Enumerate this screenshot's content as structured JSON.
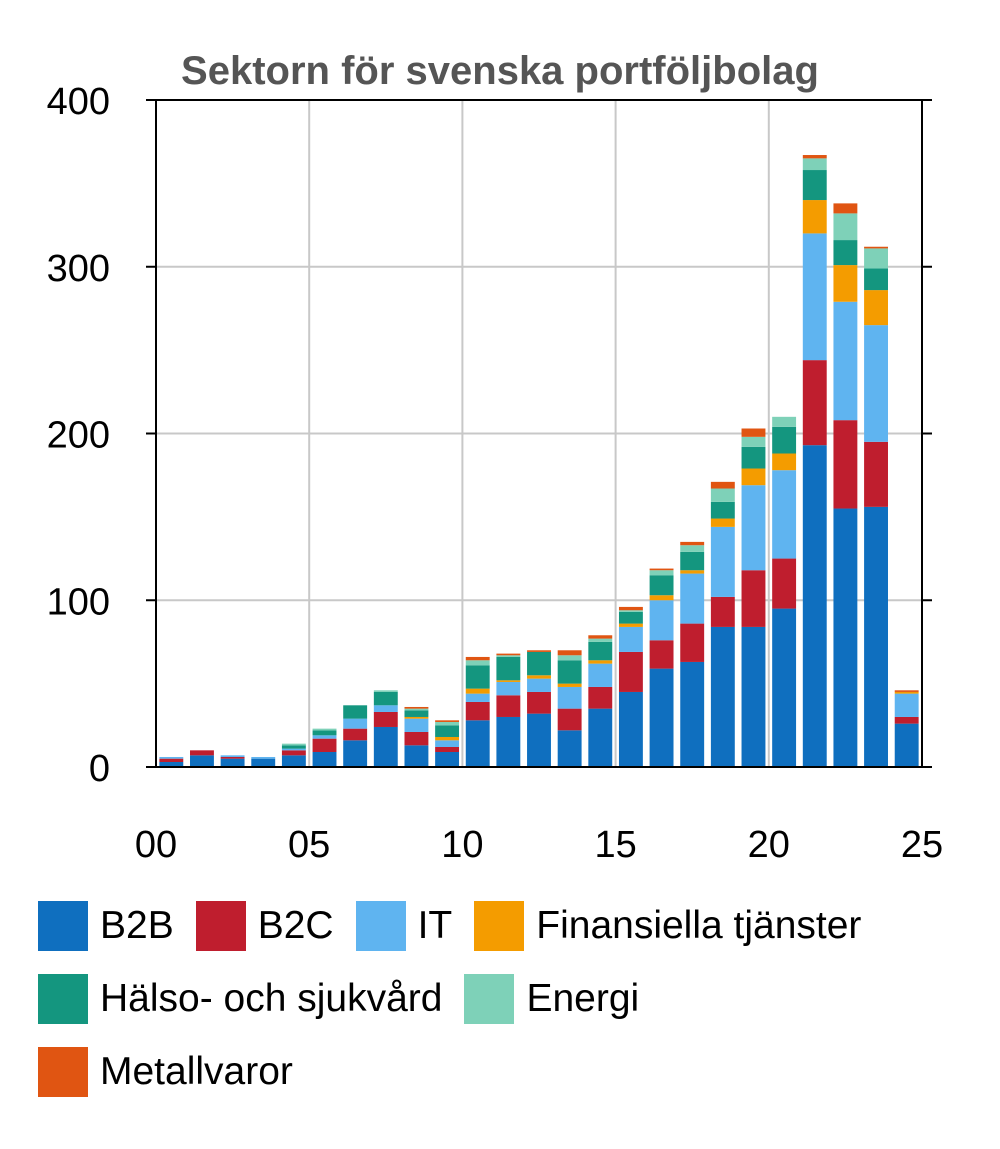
{
  "chart_data": {
    "type": "stacked_bar",
    "title": "Sektorn för svenska portföljbolag",
    "xlabel": "",
    "ylabel": "",
    "ylim": [
      0,
      400
    ],
    "xlim": [
      0,
      25
    ],
    "y_ticks": [
      "0",
      "100",
      "200",
      "300",
      "400"
    ],
    "x_ticks": [
      "00",
      "05",
      "10",
      "15",
      "20",
      "25"
    ],
    "x_tick_values": [
      0,
      5,
      10,
      15,
      20,
      25
    ],
    "grid": true,
    "legend_position": "bottom",
    "categories": [
      2000,
      2001,
      2002,
      2003,
      2004,
      2005,
      2006,
      2007,
      2008,
      2009,
      2010,
      2011,
      2012,
      2013,
      2014,
      2015,
      2016,
      2017,
      2018,
      2019,
      2020,
      2021,
      2022,
      2023,
      2024
    ],
    "series": [
      {
        "name": "B2B",
        "color": "#0f6fbf",
        "values": [
          3,
          7,
          5,
          5,
          7,
          9,
          16,
          24,
          13,
          9,
          28,
          30,
          32,
          22,
          35,
          45,
          59,
          63,
          84,
          84,
          95,
          193,
          155,
          156,
          26
        ]
      },
      {
        "name": "B2C",
        "color": "#bf1e2e",
        "values": [
          2,
          3,
          1,
          0,
          3,
          8,
          7,
          9,
          8,
          3,
          11,
          13,
          13,
          13,
          13,
          24,
          17,
          23,
          18,
          34,
          30,
          51,
          53,
          39,
          4
        ]
      },
      {
        "name": "IT",
        "color": "#5fb4f0",
        "values": [
          1,
          0,
          1,
          1,
          1,
          2,
          6,
          4,
          8,
          4,
          5,
          8,
          8,
          13,
          14,
          15,
          24,
          30,
          42,
          51,
          53,
          76,
          71,
          70,
          14
        ]
      },
      {
        "name": "Finansiella tjänster",
        "color": "#f49c00",
        "values": [
          0,
          0,
          0,
          0,
          0,
          0,
          0,
          0,
          1,
          2,
          3,
          1,
          2,
          2,
          2,
          2,
          3,
          2,
          5,
          10,
          10,
          20,
          22,
          21,
          1
        ]
      },
      {
        "name": "Hälso- och sjukvård",
        "color": "#14967f",
        "values": [
          0,
          0,
          0,
          0,
          2,
          3,
          8,
          8,
          4,
          7,
          14,
          14,
          14,
          14,
          11,
          7,
          12,
          11,
          10,
          13,
          16,
          18,
          15,
          13,
          0
        ]
      },
      {
        "name": "Energi",
        "color": "#7ed1b8",
        "values": [
          0,
          0,
          0,
          0,
          1,
          1,
          0,
          1,
          1,
          2,
          3,
          1,
          0,
          3,
          2,
          1,
          3,
          4,
          8,
          6,
          6,
          7,
          16,
          12,
          0
        ]
      },
      {
        "name": "Metallvaror",
        "color": "#e05512",
        "values": [
          0,
          0,
          0,
          0,
          0,
          0,
          0,
          0,
          1,
          1,
          2,
          1,
          1,
          3,
          2,
          2,
          1,
          2,
          4,
          5,
          0,
          2,
          6,
          1,
          1
        ]
      }
    ]
  }
}
